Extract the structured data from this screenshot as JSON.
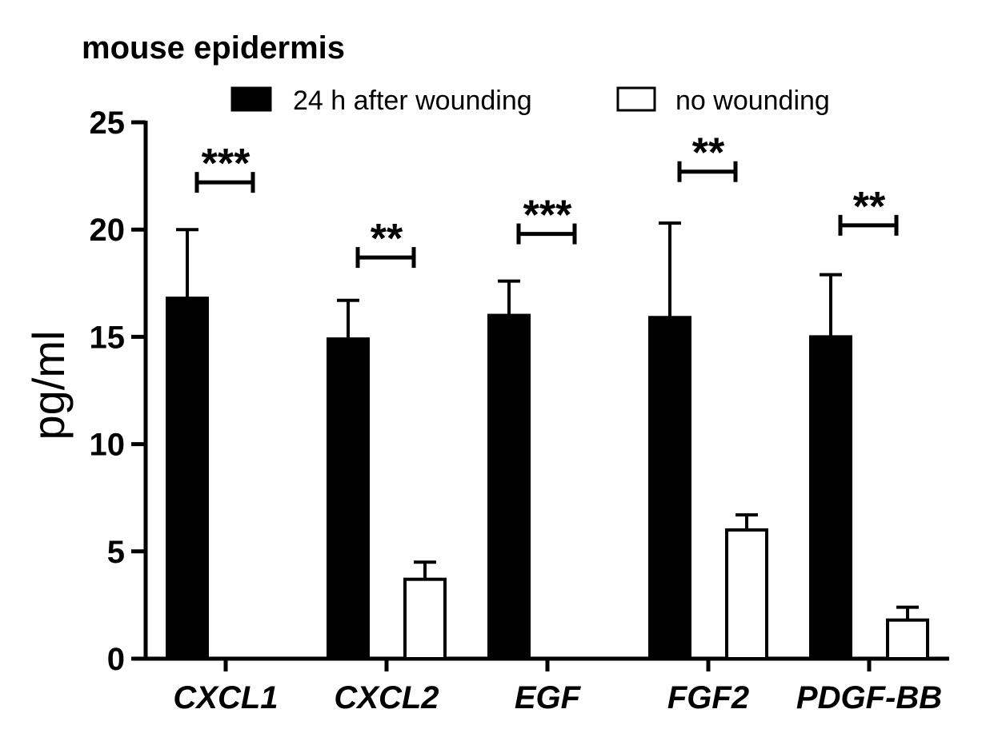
{
  "chart_data": {
    "type": "bar",
    "title": "mouse epidermis",
    "xlabel": "",
    "ylabel": "pg/ml",
    "ylim": [
      0,
      25
    ],
    "yticks": [
      "0",
      "5",
      "10",
      "15",
      "20",
      "25"
    ],
    "categories": [
      "CXCL1",
      "CXCL2",
      "EGF",
      "FGF2",
      "PDGF-BB"
    ],
    "series": [
      {
        "name": "24 h after wounding",
        "fill": "#000000",
        "values": [
          16.8,
          14.9,
          16.0,
          15.9,
          15.0
        ],
        "errors": [
          3.2,
          1.8,
          1.6,
          4.4,
          2.9
        ]
      },
      {
        "name": "no wounding",
        "fill": "#ffffff",
        "values": [
          0,
          3.7,
          0,
          6.0,
          1.8
        ],
        "errors": [
          0,
          0.8,
          0,
          0.7,
          0.6
        ]
      }
    ],
    "significance": [
      {
        "category": "CXCL1",
        "label": "***",
        "y": 22.2
      },
      {
        "category": "CXCL2",
        "label": "**",
        "y": 18.7
      },
      {
        "category": "EGF",
        "label": "***",
        "y": 19.8
      },
      {
        "category": "FGF2",
        "label": "**",
        "y": 22.7
      },
      {
        "category": "PDGF-BB",
        "label": "**",
        "y": 20.2
      }
    ],
    "legend": "top",
    "grid": false
  }
}
